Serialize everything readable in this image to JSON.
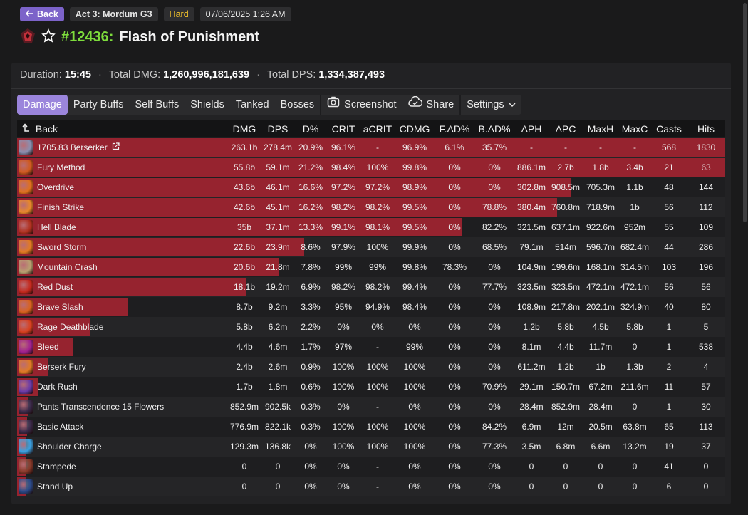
{
  "header": {
    "back_label": "Back",
    "zone": "Act 3: Mordum G3",
    "difficulty": "Hard",
    "datetime": "07/06/2025 1:26 AM",
    "encounter_number": "#12436:",
    "encounter_name": "Flash of Punishment"
  },
  "summary": {
    "duration_label": "Duration:",
    "duration_value": "15:45",
    "total_dmg_label": "Total DMG:",
    "total_dmg_value": "1,260,996,181,639",
    "total_dps_label": "Total DPS:",
    "total_dps_value": "1,334,387,493"
  },
  "tabs": {
    "damage": "Damage",
    "party_buffs": "Party Buffs",
    "self_buffs": "Self Buffs",
    "shields": "Shields",
    "tanked": "Tanked",
    "bosses": "Bosses",
    "screenshot": "Screenshot",
    "share": "Share",
    "settings": "Settings"
  },
  "table": {
    "back_label": "Back",
    "columns": [
      "DMG",
      "DPS",
      "D%",
      "CRIT",
      "aCRIT",
      "CDMG",
      "F.AD%",
      "B.AD%",
      "APH",
      "APC",
      "MaxH",
      "MaxC",
      "Casts",
      "Hits"
    ],
    "rows": [
      {
        "name": "1705.83 Berserker",
        "bar": 1.0,
        "color": "#8a8fb0",
        "cells": [
          "263.1b",
          "278.4m",
          "20.9%",
          "96.1%",
          "-",
          "96.9%",
          "6.1%",
          "35.7%",
          "-",
          "-",
          "-",
          "-",
          "568",
          "1830"
        ]
      },
      {
        "name": "Fury Method",
        "bar": 1.0,
        "color": "#d05a1e",
        "cells": [
          "55.8b",
          "59.1m",
          "21.2%",
          "98.4%",
          "100%",
          "99.8%",
          "0%",
          "0%",
          "886.1m",
          "2.7b",
          "1.8b",
          "3.4b",
          "21",
          "63"
        ]
      },
      {
        "name": "Overdrive",
        "bar": 0.782,
        "color": "#e0701c",
        "cells": [
          "43.6b",
          "46.1m",
          "16.6%",
          "97.2%",
          "97.2%",
          "98.9%",
          "0%",
          "0%",
          "302.8m",
          "908.5m",
          "705.3m",
          "1.1b",
          "48",
          "144"
        ]
      },
      {
        "name": "Finish Strike",
        "bar": 0.763,
        "color": "#e8882a",
        "cells": [
          "42.6b",
          "45.1m",
          "16.2%",
          "98.2%",
          "98.2%",
          "99.5%",
          "0%",
          "78.8%",
          "380.4m",
          "760.8m",
          "718.9m",
          "1b",
          "56",
          "112"
        ]
      },
      {
        "name": "Hell Blade",
        "bar": 0.628,
        "color": "#b0301e",
        "cells": [
          "35b",
          "37.1m",
          "13.3%",
          "99.1%",
          "98.1%",
          "99.5%",
          "0%",
          "82.2%",
          "321.5m",
          "637.1m",
          "922.6m",
          "952m",
          "55",
          "109"
        ]
      },
      {
        "name": "Sword Storm",
        "bar": 0.405,
        "color": "#e27a22",
        "cells": [
          "22.6b",
          "23.9m",
          "8.6%",
          "97.9%",
          "100%",
          "99.9%",
          "0%",
          "68.5%",
          "79.1m",
          "514m",
          "596.7m",
          "682.4m",
          "44",
          "286"
        ]
      },
      {
        "name": "Mountain Crash",
        "bar": 0.369,
        "color": "#b8a070",
        "cells": [
          "20.6b",
          "21.8m",
          "7.8%",
          "99%",
          "99%",
          "99.8%",
          "78.3%",
          "0%",
          "104.9m",
          "199.6m",
          "168.1m",
          "314.5m",
          "103",
          "196"
        ]
      },
      {
        "name": "Red Dust",
        "bar": 0.324,
        "color": "#c4281c",
        "cells": [
          "18.1b",
          "19.2m",
          "6.9%",
          "98.2%",
          "98.2%",
          "99.4%",
          "0%",
          "77.7%",
          "323.5m",
          "323.5m",
          "472.1m",
          "472.1m",
          "56",
          "56"
        ]
      },
      {
        "name": "Brave Slash",
        "bar": 0.156,
        "color": "#d8621e",
        "cells": [
          "8.7b",
          "9.2m",
          "3.3%",
          "95%",
          "94.9%",
          "98.4%",
          "0%",
          "0%",
          "108.9m",
          "217.8m",
          "202.1m",
          "324.9m",
          "40",
          "80"
        ]
      },
      {
        "name": "Rage Deathblade",
        "bar": 0.104,
        "color": "#d8401e",
        "cells": [
          "5.8b",
          "6.2m",
          "2.2%",
          "0%",
          "0%",
          "0%",
          "0%",
          "0%",
          "1.2b",
          "5.8b",
          "4.5b",
          "5.8b",
          "1",
          "5"
        ]
      },
      {
        "name": "Bleed",
        "bar": 0.079,
        "color": "#a02090",
        "cells": [
          "4.4b",
          "4.6m",
          "1.7%",
          "97%",
          "-",
          "99%",
          "0%",
          "0%",
          "8.1m",
          "4.4b",
          "11.7m",
          "0",
          "1",
          "538"
        ]
      },
      {
        "name": "Berserk Fury",
        "bar": 0.043,
        "color": "#e07a24",
        "cells": [
          "2.4b",
          "2.6m",
          "0.9%",
          "100%",
          "100%",
          "100%",
          "0%",
          "0%",
          "611.2m",
          "1.2b",
          "1b",
          "1.3b",
          "2",
          "4"
        ]
      },
      {
        "name": "Dark Rush",
        "bar": 0.03,
        "color": "#6a3aa8",
        "cells": [
          "1.7b",
          "1.8m",
          "0.6%",
          "100%",
          "100%",
          "100%",
          "0%",
          "70.9%",
          "29.1m",
          "150.7m",
          "67.2m",
          "211.6m",
          "11",
          "57"
        ]
      },
      {
        "name": "Pants Transcendence 15 Flowers",
        "bar": 0.015,
        "color": "#3a2a4a",
        "cells": [
          "852.9m",
          "902.5k",
          "0.3%",
          "0%",
          "-",
          "0%",
          "0%",
          "0%",
          "28.4m",
          "852.9m",
          "28.4m",
          "0",
          "1",
          "30"
        ]
      },
      {
        "name": "Basic Attack",
        "bar": 0.014,
        "color": "#3a2a4a",
        "cells": [
          "776.9m",
          "822.1k",
          "0.3%",
          "100%",
          "100%",
          "100%",
          "0%",
          "84.2%",
          "6.9m",
          "12m",
          "20.5m",
          "63.8m",
          "65",
          "113"
        ]
      },
      {
        "name": "Shoulder Charge",
        "bar": 0.012,
        "color": "#3aa0e0",
        "cells": [
          "129.3m",
          "136.8k",
          "0%",
          "100%",
          "100%",
          "100%",
          "0%",
          "77.3%",
          "3.5m",
          "6.8m",
          "6.6m",
          "13.2m",
          "19",
          "37"
        ]
      },
      {
        "name": "Stampede",
        "bar": 0.012,
        "color": "#8a3a2a",
        "cells": [
          "0",
          "0",
          "0%",
          "0%",
          "-",
          "0%",
          "0%",
          "0%",
          "0",
          "0",
          "0",
          "0",
          "41",
          "0"
        ]
      },
      {
        "name": "Stand Up",
        "bar": 0.012,
        "color": "#2a4a8a",
        "cells": [
          "0",
          "0",
          "0%",
          "0%",
          "-",
          "0%",
          "0%",
          "0%",
          "0",
          "0",
          "0",
          "0",
          "6",
          "0"
        ]
      }
    ]
  },
  "colors": {
    "accent": "#9b85dc",
    "bar": "#96232f",
    "encounter_number": "#7ddc3c",
    "difficulty": "#f2c22b"
  }
}
